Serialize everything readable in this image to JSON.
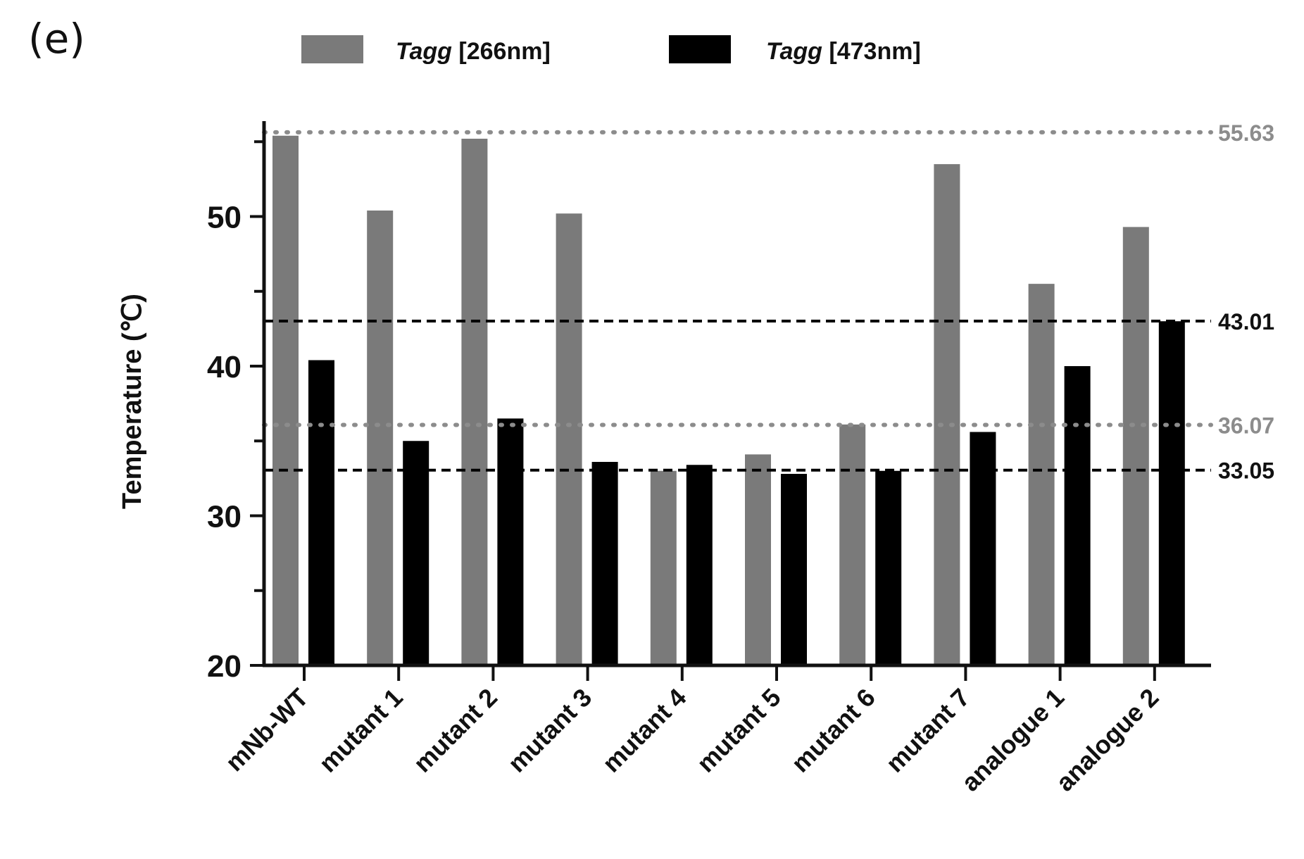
{
  "panel_label": "(e)",
  "chart_data": {
    "type": "bar",
    "categories": [
      "mNb-WT",
      "mutant 1",
      "mutant 2",
      "mutant 3",
      "mutant 4",
      "mutant 5",
      "mutant 6",
      "mutant 7",
      "analogue 1",
      "analogue 2"
    ],
    "series": [
      {
        "name_italic": "Tagg",
        "name_suffix": " [266nm]",
        "color": "#7a7a7a",
        "values": [
          55.4,
          50.4,
          55.2,
          50.2,
          33.0,
          34.1,
          36.1,
          53.5,
          45.5,
          49.3
        ]
      },
      {
        "name_italic": "Tagg",
        "name_suffix": " [473nm]",
        "color": "#000000",
        "values": [
          40.4,
          35.0,
          36.5,
          33.6,
          33.4,
          32.8,
          33.0,
          35.6,
          40.0,
          43.0
        ]
      }
    ],
    "xlabel": "",
    "ylabel": "Temperature (℃)",
    "ylim": [
      20,
      56
    ],
    "yticks": [
      20,
      30,
      40,
      50
    ],
    "minor_yticks": [
      25,
      35,
      45,
      55
    ],
    "reference_lines": [
      {
        "value": 55.63,
        "label": "55.63",
        "style": "dotted",
        "color": "#8c8c8c"
      },
      {
        "value": 43.01,
        "label": "43.01",
        "style": "dashed",
        "color": "#000000"
      },
      {
        "value": 36.07,
        "label": "36.07",
        "style": "dotted",
        "color": "#8c8c8c"
      },
      {
        "value": 33.05,
        "label": "33.05",
        "style": "dashed",
        "color": "#000000"
      }
    ],
    "legend_position": "top"
  }
}
